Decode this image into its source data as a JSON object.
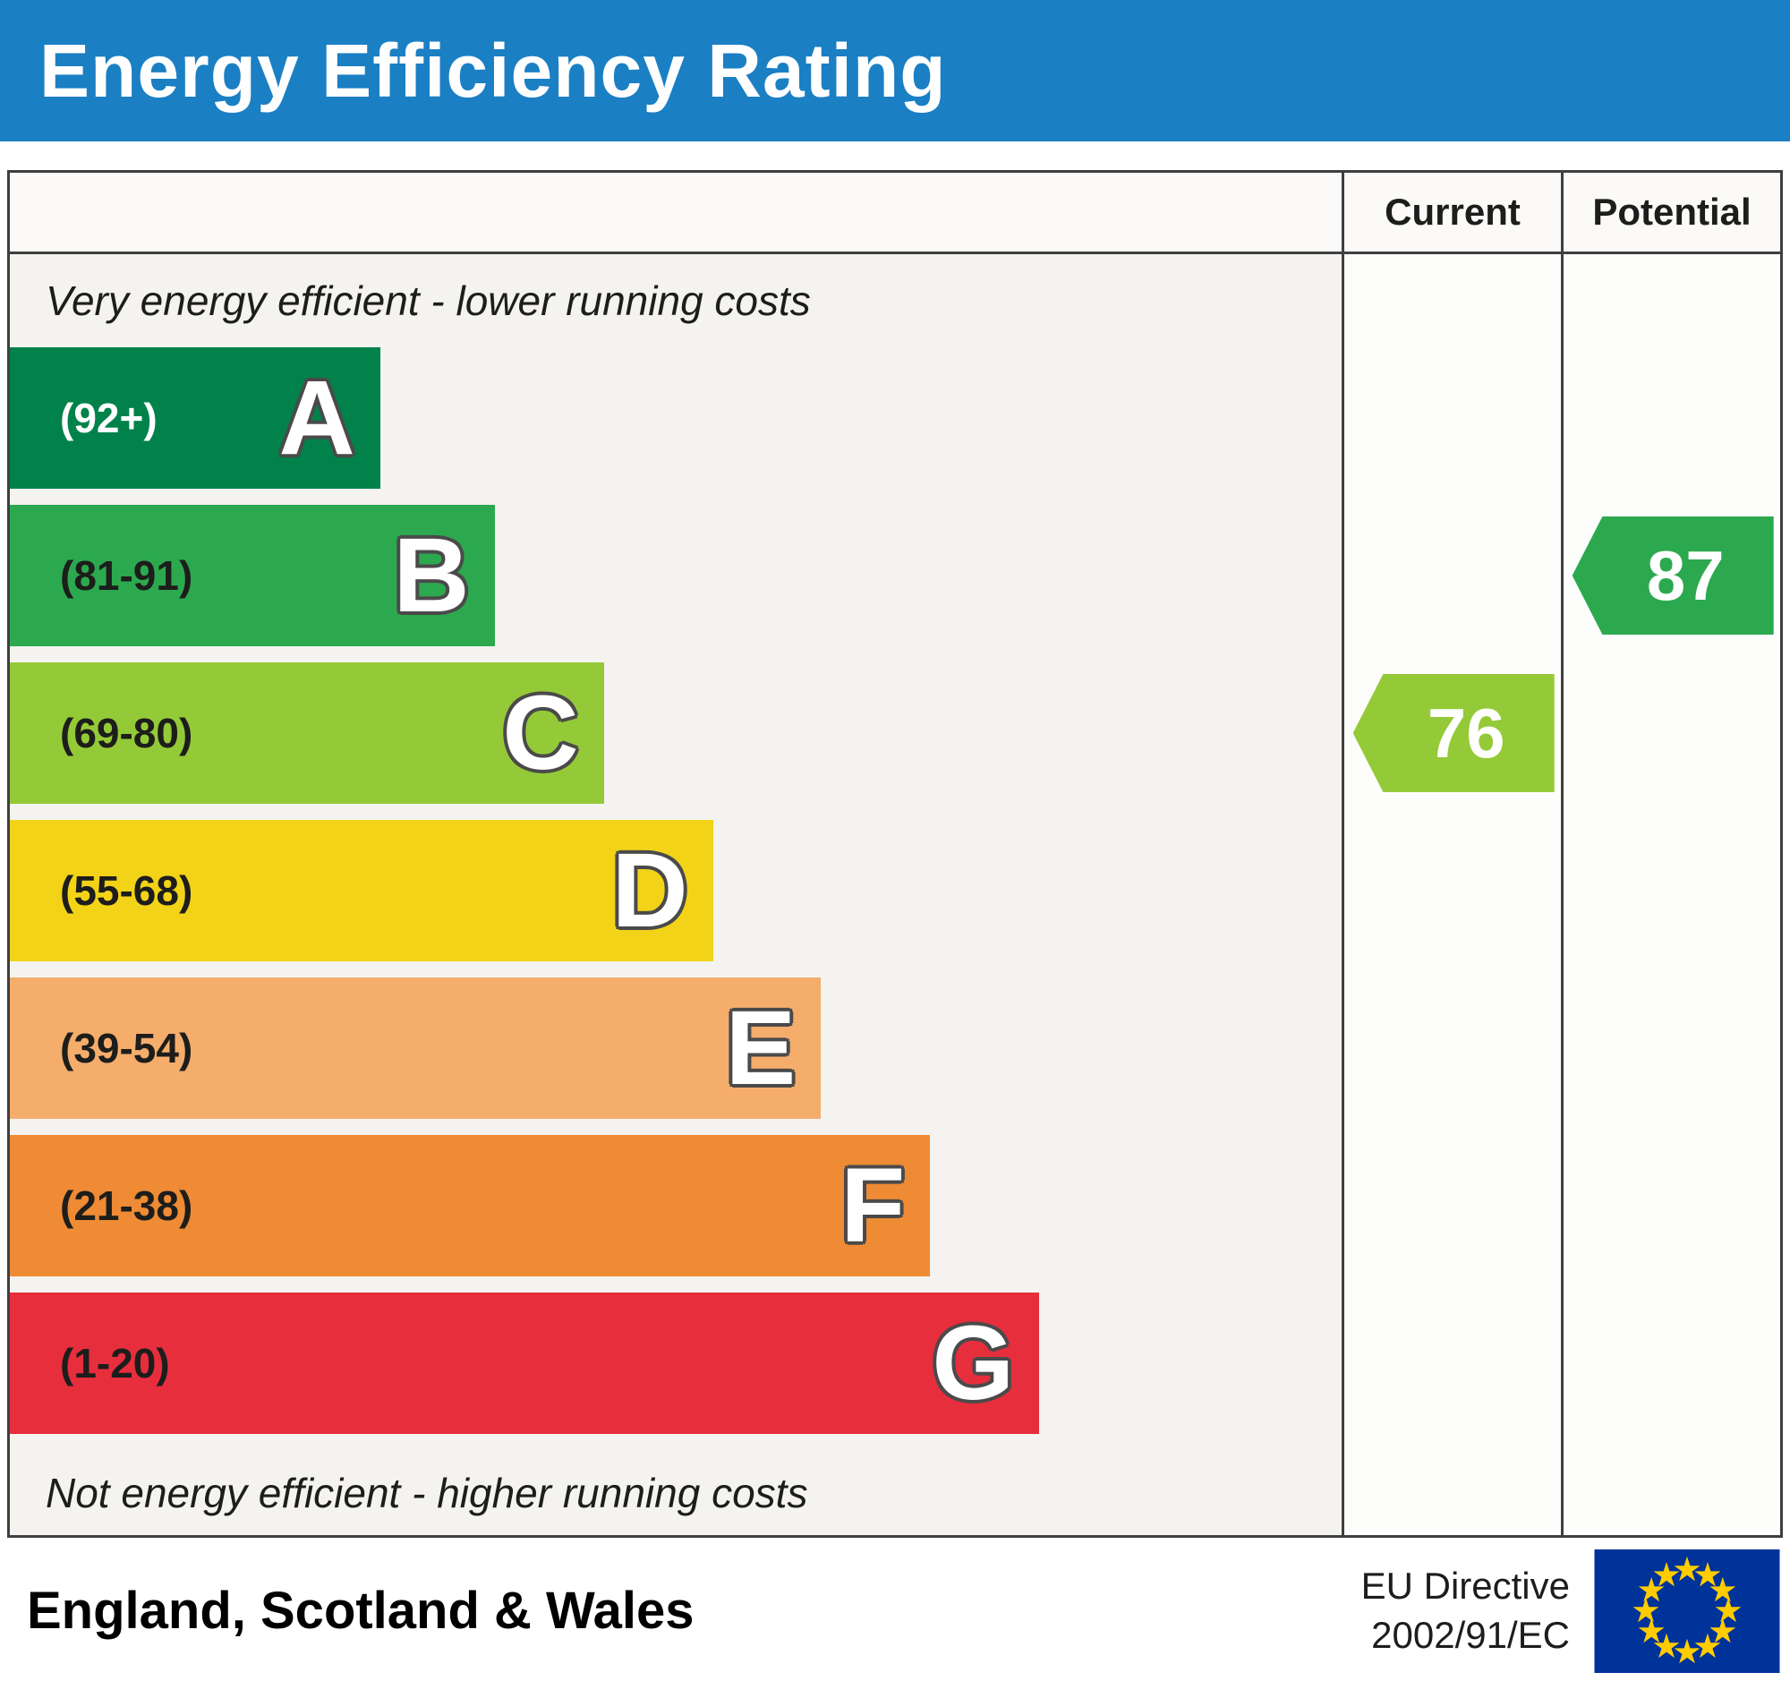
{
  "title": "Energy Efficiency Rating",
  "header": {
    "current_label": "Current",
    "potential_label": "Potential"
  },
  "notes": {
    "top": "Very energy efficient - lower running costs",
    "bottom": "Not energy efficient - higher running costs"
  },
  "footer": {
    "region": "England, Scotland & Wales",
    "directive_line1": "EU Directive",
    "directive_line2": "2002/91/EC"
  },
  "colors": {
    "banner_bg": "#1b7fc4",
    "banner_text": "#ffffff",
    "border": "#3f3f3f",
    "chart_bg": "#f4f3ef",
    "eu_flag_blue": "#003399",
    "eu_flag_stars": "#ffcc00"
  },
  "chart_data": {
    "type": "bar",
    "title": "Energy Efficiency Rating",
    "categories": [
      "A",
      "B",
      "C",
      "D",
      "E",
      "F",
      "G"
    ],
    "bands": [
      {
        "letter": "A",
        "range": "(92+)",
        "score_min": 92,
        "score_max": 100,
        "color": "#00824a",
        "label_color": "#ffffff",
        "width_pct": 27.8
      },
      {
        "letter": "B",
        "range": "(81-91)",
        "score_min": 81,
        "score_max": 91,
        "color": "#2ca94f",
        "label_color": "#1d1d1b",
        "width_pct": 36.4
      },
      {
        "letter": "C",
        "range": "(69-80)",
        "score_min": 69,
        "score_max": 80,
        "color": "#94ca37",
        "label_color": "#1d1d1b",
        "width_pct": 44.6
      },
      {
        "letter": "D",
        "range": "(55-68)",
        "score_min": 55,
        "score_max": 68,
        "color": "#f2d318",
        "label_color": "#1d1d1b",
        "width_pct": 52.8
      },
      {
        "letter": "E",
        "range": "(39-54)",
        "score_min": 39,
        "score_max": 54,
        "color": "#f5ad6c",
        "label_color": "#1d1d1b",
        "width_pct": 60.9
      },
      {
        "letter": "F",
        "range": "(21-38)",
        "score_min": 21,
        "score_max": 38,
        "color": "#ee8b34",
        "label_color": "#1d1d1b",
        "width_pct": 69.1
      },
      {
        "letter": "G",
        "range": "(1-20)",
        "score_min": 1,
        "score_max": 20,
        "color": "#e62e3d",
        "label_color": "#1d1d1b",
        "width_pct": 77.3
      }
    ],
    "current": {
      "value": 76,
      "band": "C",
      "color": "#94ca37"
    },
    "potential": {
      "value": 87,
      "band": "B",
      "color": "#2ca94f"
    }
  }
}
